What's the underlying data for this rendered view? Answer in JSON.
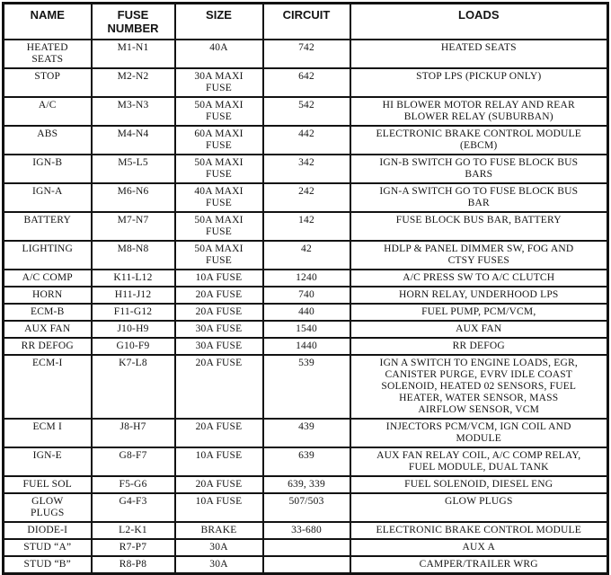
{
  "colors": {
    "ink": "#141414",
    "background": "#ffffff",
    "border": "#121212"
  },
  "table": {
    "columns": [
      "NAME",
      "FUSE NUMBER",
      "SIZE",
      "CIRCUIT",
      "LOADS"
    ],
    "rows": [
      {
        "name": "HEATED SEATS",
        "fuse": "M1-N1",
        "size": "40A",
        "circuit": "742",
        "loads": "HEATED SEATS"
      },
      {
        "name": "STOP",
        "fuse": "M2-N2",
        "size": "30A MAXI FUSE",
        "circuit": "642",
        "loads": "STOP LPS (PICKUP ONLY)"
      },
      {
        "name": "A/C",
        "fuse": "M3-N3",
        "size": "50A MAXI FUSE",
        "circuit": "542",
        "loads": "HI BLOWER MOTOR RELAY AND REAR BLOWER RELAY (SUBURBAN)"
      },
      {
        "name": "ABS",
        "fuse": "M4-N4",
        "size": "60A MAXI FUSE",
        "circuit": "442",
        "loads": "ELECTRONIC BRAKE CONTROL MODULE (EBCM)"
      },
      {
        "name": "IGN-B",
        "fuse": "M5-L5",
        "size": "50A MAXI FUSE",
        "circuit": "342",
        "loads": "IGN-B SWITCH GO TO FUSE BLOCK BUS BARS"
      },
      {
        "name": "IGN-A",
        "fuse": "M6-N6",
        "size": "40A MAXI FUSE",
        "circuit": "242",
        "loads": "IGN-A SWITCH GO TO FUSE BLOCK BUS BAR"
      },
      {
        "name": "BATTERY",
        "fuse": "M7-N7",
        "size": "50A MAXI FUSE",
        "circuit": "142",
        "loads": "FUSE BLOCK BUS BAR, BATTERY"
      },
      {
        "name": "LIGHTING",
        "fuse": "M8-N8",
        "size": "50A MAXI FUSE",
        "circuit": "42",
        "loads": "HDLP & PANEL DIMMER SW, FOG AND CTSY FUSES"
      },
      {
        "name": "A/C COMP",
        "fuse": "K11-L12",
        "size": "10A FUSE",
        "circuit": "1240",
        "loads": "A/C PRESS SW TO A/C CLUTCH"
      },
      {
        "name": "HORN",
        "fuse": "H11-J12",
        "size": "20A FUSE",
        "circuit": "740",
        "loads": "HORN RELAY, UNDERHOOD LPS"
      },
      {
        "name": "ECM-B",
        "fuse": "F11-G12",
        "size": "20A FUSE",
        "circuit": "440",
        "loads": "FUEL PUMP, PCM/VCM,"
      },
      {
        "name": "AUX FAN",
        "fuse": "J10-H9",
        "size": "30A FUSE",
        "circuit": "1540",
        "loads": "AUX FAN"
      },
      {
        "name": "RR DEFOG",
        "fuse": "G10-F9",
        "size": "30A FUSE",
        "circuit": "1440",
        "loads": "RR DEFOG"
      },
      {
        "name": "ECM-I",
        "fuse": "K7-L8",
        "size": "20A FUSE",
        "circuit": "539",
        "loads": "IGN A SWITCH TO ENGINE LOADS, EGR, CANISTER PURGE, EVRV IDLE COAST SOLENOID, HEATED 02 SENSORS, FUEL HEATER, WATER SENSOR, MASS AIRFLOW SENSOR, VCM"
      },
      {
        "name": "ECM I",
        "fuse": "J8-H7",
        "size": "20A FUSE",
        "circuit": "439",
        "loads": "INJECTORS PCM/VCM, IGN COIL AND MODULE"
      },
      {
        "name": "IGN-E",
        "fuse": "G8-F7",
        "size": "10A FUSE",
        "circuit": "639",
        "loads": "AUX FAN RELAY COIL, A/C COMP RELAY, FUEL MODULE, DUAL TANK"
      },
      {
        "name": "FUEL SOL",
        "fuse": "F5-G6",
        "size": "20A FUSE",
        "circuit": "639, 339",
        "loads": "FUEL SOLENOID, DIESEL ENG"
      },
      {
        "name": "GLOW PLUGS",
        "fuse": "G4-F3",
        "size": "10A FUSE",
        "circuit": "507/503",
        "loads": "GLOW PLUGS"
      },
      {
        "name": "DIODE-I",
        "fuse": "L2-K1",
        "size": "BRAKE",
        "circuit": "33-680",
        "loads": "ELECTRONIC BRAKE CONTROL MODULE"
      },
      {
        "name": "STUD “A”",
        "fuse": "R7-P7",
        "size": "30A",
        "circuit": "",
        "loads": "AUX A"
      },
      {
        "name": "STUD “B”",
        "fuse": "R8-P8",
        "size": "30A",
        "circuit": "",
        "loads": "CAMPER/TRAILER WRG"
      }
    ]
  }
}
